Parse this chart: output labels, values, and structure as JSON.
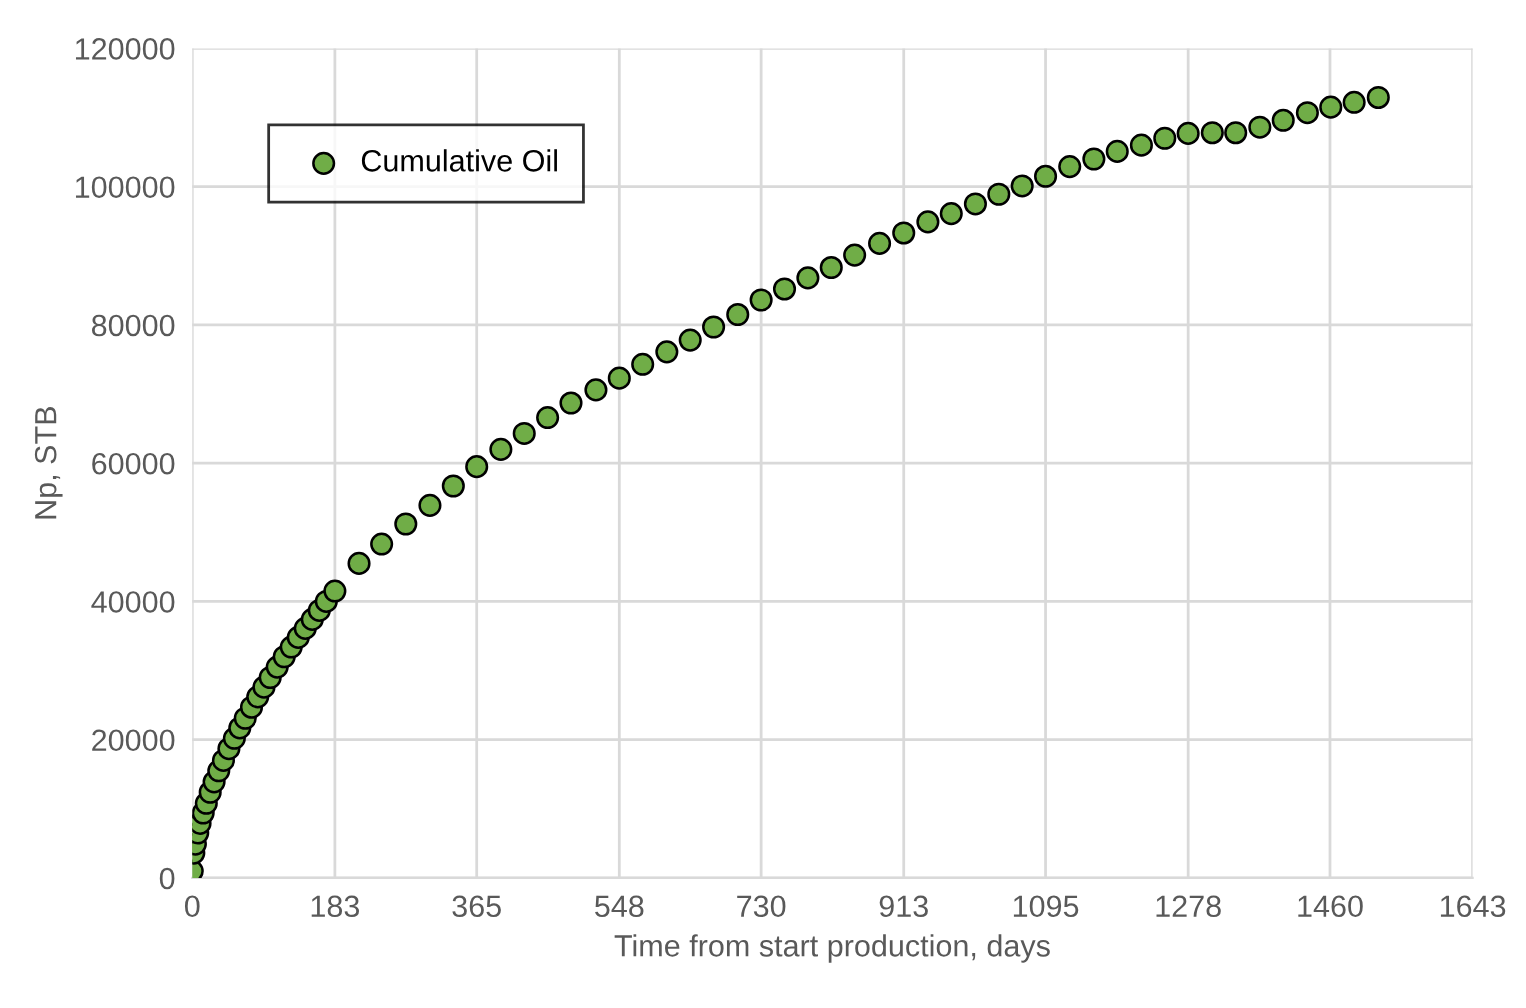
{
  "chart_data": {
    "type": "scatter",
    "xlabel": "Time from start production, days",
    "ylabel": "Np, STB",
    "xlim": [
      0,
      1643
    ],
    "xticks": [
      0,
      183,
      365,
      548,
      730,
      913,
      1095,
      1278,
      1460,
      1643
    ],
    "ylim": [
      0,
      120000
    ],
    "yticks": [
      0,
      20000,
      40000,
      60000,
      80000,
      100000,
      120000
    ],
    "grid": true,
    "legend": "top left",
    "marker": "circle",
    "series": [
      {
        "name": "Cumulative Oil",
        "color": "#70ad47",
        "x": [
          0,
          2,
          4,
          7,
          10,
          14,
          18,
          23,
          28,
          34,
          40,
          47,
          54,
          61,
          68,
          76,
          84,
          92,
          100,
          109,
          118,
          127,
          136,
          145,
          154,
          163,
          172,
          183,
          214,
          243,
          274,
          305,
          335,
          365,
          396,
          426,
          456,
          486,
          518,
          548,
          578,
          609,
          639,
          669,
          700,
          730,
          760,
          790,
          820,
          850,
          882,
          913,
          944,
          974,
          1005,
          1035,
          1065,
          1095,
          1126,
          1157,
          1187,
          1218,
          1248,
          1278,
          1309,
          1339,
          1370,
          1400,
          1431,
          1461,
          1491,
          1522
        ],
        "values": [
          1000,
          3600,
          4900,
          6500,
          7900,
          9400,
          10800,
          12400,
          13900,
          15500,
          17000,
          18700,
          20200,
          21700,
          23100,
          24700,
          26200,
          27600,
          29000,
          30500,
          32000,
          33400,
          34800,
          36100,
          37400,
          38700,
          40000,
          41500,
          45500,
          48300,
          51200,
          53900,
          56700,
          59500,
          62000,
          64300,
          66600,
          68700,
          70600,
          72300,
          74300,
          76100,
          77800,
          79700,
          81500,
          83600,
          85200,
          86800,
          88300,
          90100,
          91800,
          93300,
          94900,
          96100,
          97500,
          98900,
          100100,
          101500,
          102900,
          104000,
          105100,
          106000,
          107000,
          107700,
          107800,
          107800,
          108600,
          109600,
          110700,
          111500,
          112200,
          112900
        ]
      }
    ]
  }
}
